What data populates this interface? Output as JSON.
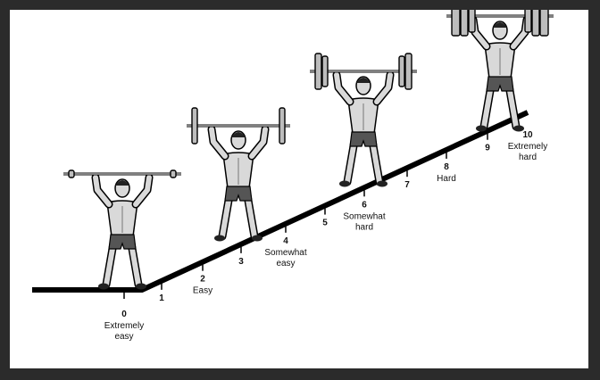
{
  "scale": [
    {
      "number": "0",
      "lines": [
        "Extremely",
        "easy"
      ]
    },
    {
      "number": "1",
      "lines": []
    },
    {
      "number": "2",
      "lines": [
        "Easy"
      ]
    },
    {
      "number": "3",
      "lines": []
    },
    {
      "number": "4",
      "lines": [
        "Somewhat",
        "easy"
      ]
    },
    {
      "number": "5",
      "lines": []
    },
    {
      "number": "6",
      "lines": [
        "Somewhat",
        "hard"
      ]
    },
    {
      "number": "7",
      "lines": []
    },
    {
      "number": "8",
      "lines": [
        "Hard"
      ]
    },
    {
      "number": "9",
      "lines": []
    },
    {
      "number": "10",
      "lines": [
        "Extremely",
        "hard"
      ]
    }
  ],
  "figures": [
    {
      "weight": "bar-only"
    },
    {
      "weight": "light-plates"
    },
    {
      "weight": "medium-plates"
    },
    {
      "weight": "heavy-plates"
    }
  ],
  "colors": {
    "line": "#000000",
    "skin": "#d9d9d9",
    "shorts": "#555555",
    "plate": "#bdbdbd"
  }
}
